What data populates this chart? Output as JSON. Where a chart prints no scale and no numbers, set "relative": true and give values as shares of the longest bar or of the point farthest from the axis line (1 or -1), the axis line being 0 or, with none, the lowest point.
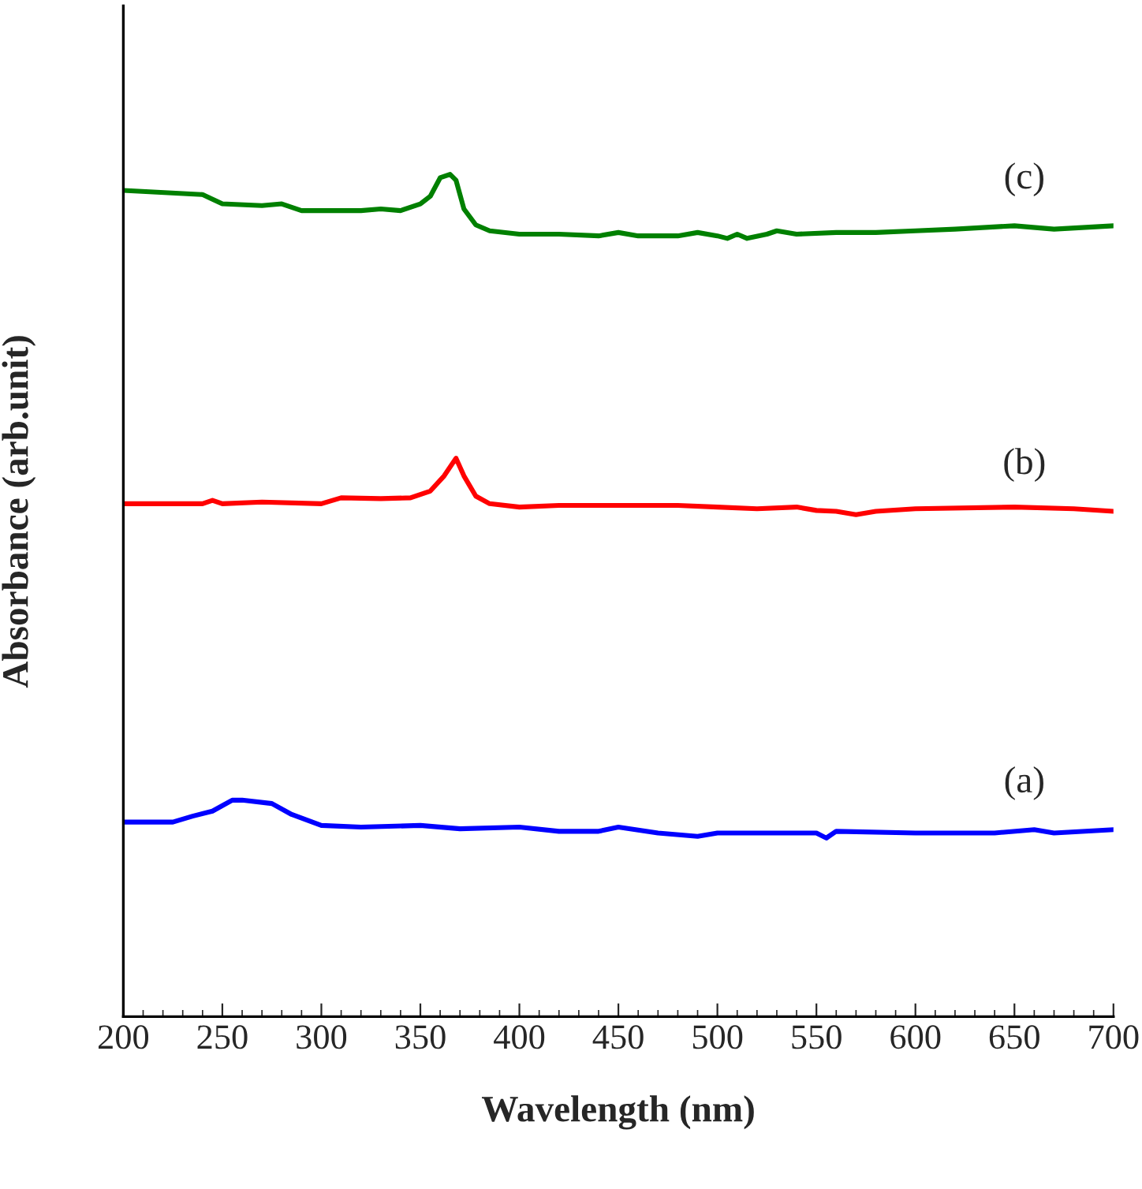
{
  "chart_data": {
    "type": "line",
    "relative": true,
    "xlabel": "Wavelength (nm)",
    "ylabel": "Absorbance (arb.unit)",
    "xlim": [
      200,
      700
    ],
    "xticks": [
      200,
      250,
      300,
      350,
      400,
      450,
      500,
      550,
      600,
      650,
      700
    ],
    "grid": false,
    "legend": false,
    "series": [
      {
        "name": "(a)",
        "color": "#0000ff",
        "x": [
          200,
          225,
          235,
          245,
          255,
          260,
          275,
          285,
          300,
          320,
          350,
          370,
          400,
          420,
          440,
          450,
          470,
          490,
          500,
          520,
          550,
          555,
          560,
          600,
          640,
          660,
          670,
          700
        ],
        "values": [
          0.231,
          0.231,
          0.238,
          0.244,
          0.257,
          0.257,
          0.253,
          0.24,
          0.227,
          0.225,
          0.227,
          0.223,
          0.225,
          0.22,
          0.22,
          0.225,
          0.218,
          0.214,
          0.218,
          0.218,
          0.218,
          0.212,
          0.22,
          0.218,
          0.218,
          0.222,
          0.218,
          0.222
        ]
      },
      {
        "name": "(b)",
        "color": "#ff0000",
        "x": [
          200,
          240,
          245,
          250,
          270,
          300,
          310,
          330,
          345,
          355,
          362,
          368,
          372,
          378,
          385,
          400,
          420,
          480,
          500,
          520,
          540,
          550,
          560,
          570,
          580,
          600,
          650,
          680,
          700
        ],
        "values": [
          0.609,
          0.609,
          0.613,
          0.609,
          0.611,
          0.609,
          0.616,
          0.615,
          0.616,
          0.624,
          0.642,
          0.663,
          0.642,
          0.618,
          0.609,
          0.605,
          0.607,
          0.607,
          0.605,
          0.603,
          0.605,
          0.601,
          0.6,
          0.596,
          0.6,
          0.603,
          0.605,
          0.603,
          0.6
        ]
      },
      {
        "name": "(c)",
        "color": "#008000",
        "x": [
          200,
          240,
          250,
          270,
          280,
          290,
          320,
          330,
          340,
          350,
          355,
          360,
          365,
          368,
          372,
          378,
          385,
          400,
          420,
          440,
          450,
          460,
          480,
          490,
          500,
          505,
          510,
          515,
          525,
          530,
          540,
          560,
          580,
          600,
          620,
          650,
          670,
          700
        ],
        "values": [
          0.981,
          0.976,
          0.965,
          0.963,
          0.965,
          0.957,
          0.957,
          0.959,
          0.957,
          0.965,
          0.974,
          0.996,
          1.0,
          0.993,
          0.959,
          0.94,
          0.933,
          0.929,
          0.929,
          0.927,
          0.931,
          0.927,
          0.927,
          0.931,
          0.927,
          0.924,
          0.929,
          0.924,
          0.929,
          0.933,
          0.929,
          0.931,
          0.931,
          0.933,
          0.935,
          0.939,
          0.935,
          0.939
        ]
      }
    ]
  }
}
